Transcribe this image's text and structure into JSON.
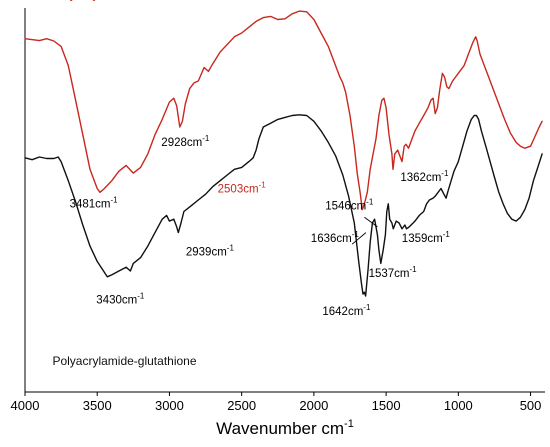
{
  "chart_data": {
    "type": "line",
    "title": "",
    "xlabel": "Wavenumber cm",
    "xlabel_sup": "-1",
    "ylabel": "",
    "xlim": [
      4000,
      400
    ],
    "x_reversed": true,
    "ylim": [
      0,
      100
    ],
    "grid": false,
    "x_ticks": [
      4000,
      3500,
      3000,
      2500,
      2000,
      1500,
      1000,
      500
    ],
    "series": [
      {
        "name": "Polyacrylamide",
        "color": "#c8281e",
        "points": [
          [
            4000,
            92.0
          ],
          [
            3900,
            91.5
          ],
          [
            3850,
            92.0
          ],
          [
            3800,
            91.4
          ],
          [
            3750,
            90.0
          ],
          [
            3700,
            85.0
          ],
          [
            3650,
            76.0
          ],
          [
            3600,
            67.0
          ],
          [
            3550,
            58.0
          ],
          [
            3500,
            53.0
          ],
          [
            3481,
            52.0
          ],
          [
            3450,
            53.0
          ],
          [
            3400,
            55.0
          ],
          [
            3350,
            57.5
          ],
          [
            3300,
            59.0
          ],
          [
            3250,
            57.0
          ],
          [
            3200,
            58.5
          ],
          [
            3150,
            62.0
          ],
          [
            3100,
            67.0
          ],
          [
            3050,
            71.0
          ],
          [
            3000,
            75.5
          ],
          [
            2970,
            76.5
          ],
          [
            2950,
            74.5
          ],
          [
            2928,
            69.0
          ],
          [
            2910,
            70.5
          ],
          [
            2890,
            75.0
          ],
          [
            2860,
            79.0
          ],
          [
            2830,
            80.5
          ],
          [
            2800,
            81.0
          ],
          [
            2760,
            84.5
          ],
          [
            2730,
            83.5
          ],
          [
            2700,
            85.5
          ],
          [
            2650,
            88.5
          ],
          [
            2600,
            90.5
          ],
          [
            2550,
            92.5
          ],
          [
            2500,
            93.5
          ],
          [
            2450,
            95.0
          ],
          [
            2400,
            96.5
          ],
          [
            2350,
            97.5
          ],
          [
            2300,
            97.8
          ],
          [
            2250,
            97.0
          ],
          [
            2200,
            97.2
          ],
          [
            2150,
            98.5
          ],
          [
            2100,
            99.2
          ],
          [
            2050,
            99.0
          ],
          [
            2000,
            97.0
          ],
          [
            1950,
            93.5
          ],
          [
            1900,
            90.0
          ],
          [
            1860,
            86.0
          ],
          [
            1820,
            82.0
          ],
          [
            1800,
            80.5
          ],
          [
            1780,
            78.0
          ],
          [
            1750,
            72.0
          ],
          [
            1720,
            64.0
          ],
          [
            1700,
            57.0
          ],
          [
            1680,
            52.0
          ],
          [
            1665,
            47.5
          ],
          [
            1650,
            49.0
          ],
          [
            1630,
            52.0
          ],
          [
            1610,
            58.0
          ],
          [
            1590,
            62.0
          ],
          [
            1570,
            66.0
          ],
          [
            1550,
            72.0
          ],
          [
            1530,
            76.0
          ],
          [
            1515,
            76.5
          ],
          [
            1500,
            74.0
          ],
          [
            1480,
            67.0
          ],
          [
            1460,
            62.0
          ],
          [
            1452,
            58.0
          ],
          [
            1440,
            62.0
          ],
          [
            1420,
            63.0
          ],
          [
            1405,
            61.5
          ],
          [
            1390,
            60.0
          ],
          [
            1375,
            64.0
          ],
          [
            1362,
            64.5
          ],
          [
            1345,
            63.5
          ],
          [
            1320,
            66.0
          ],
          [
            1300,
            68.0
          ],
          [
            1270,
            70.0
          ],
          [
            1240,
            72.0
          ],
          [
            1210,
            74.0
          ],
          [
            1190,
            76.0
          ],
          [
            1175,
            76.5
          ],
          [
            1160,
            72.5
          ],
          [
            1145,
            74.0
          ],
          [
            1130,
            78.5
          ],
          [
            1110,
            83.0
          ],
          [
            1095,
            82.0
          ],
          [
            1080,
            79.5
          ],
          [
            1065,
            79.0
          ],
          [
            1040,
            81.0
          ],
          [
            1000,
            83.0
          ],
          [
            960,
            85.0
          ],
          [
            930,
            88.0
          ],
          [
            900,
            91.0
          ],
          [
            880,
            92.5
          ],
          [
            870,
            91.5
          ],
          [
            850,
            88.0
          ],
          [
            820,
            85.0
          ],
          [
            790,
            82.0
          ],
          [
            760,
            79.0
          ],
          [
            720,
            75.0
          ],
          [
            680,
            71.0
          ],
          [
            640,
            67.5
          ],
          [
            600,
            65.0
          ],
          [
            570,
            64.0
          ],
          [
            540,
            63.5
          ],
          [
            500,
            64.0
          ],
          [
            470,
            66.5
          ],
          [
            440,
            69.0
          ],
          [
            420,
            70.5
          ]
        ]
      },
      {
        "name": "Polyacrylamide-glutathione",
        "color": "#111111",
        "points": [
          [
            4000,
            61.0
          ],
          [
            3950,
            60.5
          ],
          [
            3900,
            61.2
          ],
          [
            3850,
            60.8
          ],
          [
            3800,
            60.8
          ],
          [
            3770,
            61.2
          ],
          [
            3750,
            60.0
          ],
          [
            3700,
            55.0
          ],
          [
            3650,
            49.5
          ],
          [
            3600,
            43.5
          ],
          [
            3550,
            38.0
          ],
          [
            3500,
            34.0
          ],
          [
            3430,
            30.0
          ],
          [
            3400,
            30.5
          ],
          [
            3350,
            31.5
          ],
          [
            3300,
            32.5
          ],
          [
            3270,
            31.5
          ],
          [
            3250,
            33.5
          ],
          [
            3200,
            35.0
          ],
          [
            3150,
            38.0
          ],
          [
            3100,
            41.5
          ],
          [
            3050,
            45.0
          ],
          [
            3020,
            46.0
          ],
          [
            3000,
            44.5
          ],
          [
            2970,
            45.0
          ],
          [
            2950,
            43.0
          ],
          [
            2939,
            41.5
          ],
          [
            2920,
            44.0
          ],
          [
            2900,
            47.0
          ],
          [
            2850,
            48.5
          ],
          [
            2800,
            50.0
          ],
          [
            2750,
            51.5
          ],
          [
            2700,
            53.5
          ],
          [
            2650,
            55.0
          ],
          [
            2600,
            56.5
          ],
          [
            2550,
            58.0
          ],
          [
            2500,
            58.5
          ],
          [
            2450,
            60.0
          ],
          [
            2420,
            61.0
          ],
          [
            2400,
            63.0
          ],
          [
            2380,
            66.0
          ],
          [
            2350,
            69.0
          ],
          [
            2300,
            70.0
          ],
          [
            2250,
            71.0
          ],
          [
            2200,
            71.5
          ],
          [
            2150,
            72.0
          ],
          [
            2100,
            72.2
          ],
          [
            2050,
            72.0
          ],
          [
            2000,
            70.5
          ],
          [
            1950,
            68.0
          ],
          [
            1900,
            65.0
          ],
          [
            1850,
            61.5
          ],
          [
            1800,
            56.5
          ],
          [
            1760,
            51.0
          ],
          [
            1720,
            44.0
          ],
          [
            1690,
            34.0
          ],
          [
            1670,
            28.0
          ],
          [
            1660,
            25.5
          ],
          [
            1650,
            26.0
          ],
          [
            1642,
            25.0
          ],
          [
            1625,
            32.0
          ],
          [
            1610,
            39.0
          ],
          [
            1595,
            44.0
          ],
          [
            1580,
            45.0
          ],
          [
            1560,
            41.0
          ],
          [
            1550,
            37.0
          ],
          [
            1537,
            33.5
          ],
          [
            1520,
            37.0
          ],
          [
            1505,
            41.0
          ],
          [
            1495,
            47.0
          ],
          [
            1485,
            49.0
          ],
          [
            1475,
            45.0
          ],
          [
            1460,
            44.0
          ],
          [
            1450,
            42.5
          ],
          [
            1430,
            44.5
          ],
          [
            1410,
            44.0
          ],
          [
            1390,
            42.5
          ],
          [
            1370,
            43.5
          ],
          [
            1359,
            42.5
          ],
          [
            1340,
            43.0
          ],
          [
            1300,
            44.5
          ],
          [
            1270,
            46.0
          ],
          [
            1240,
            47.0
          ],
          [
            1220,
            49.0
          ],
          [
            1200,
            50.0
          ],
          [
            1175,
            50.5
          ],
          [
            1160,
            51.0
          ],
          [
            1140,
            52.0
          ],
          [
            1120,
            53.0
          ],
          [
            1100,
            51.5
          ],
          [
            1085,
            50.5
          ],
          [
            1070,
            52.5
          ],
          [
            1050,
            55.0
          ],
          [
            1030,
            57.5
          ],
          [
            1000,
            60.0
          ],
          [
            970,
            64.0
          ],
          [
            940,
            68.0
          ],
          [
            910,
            71.0
          ],
          [
            890,
            72.0
          ],
          [
            875,
            72.0
          ],
          [
            860,
            71.0
          ],
          [
            840,
            68.0
          ],
          [
            810,
            64.0
          ],
          [
            780,
            60.0
          ],
          [
            750,
            56.0
          ],
          [
            720,
            52.0
          ],
          [
            690,
            49.0
          ],
          [
            660,
            46.5
          ],
          [
            630,
            45.0
          ],
          [
            600,
            44.5
          ],
          [
            570,
            45.5
          ],
          [
            540,
            47.5
          ],
          [
            510,
            50.5
          ],
          [
            480,
            55.0
          ],
          [
            450,
            58.5
          ],
          [
            420,
            62.0
          ]
        ]
      }
    ],
    "series_labels": [
      {
        "text": "Polyacrylamide",
        "series": 0,
        "x": 3810,
        "y": 102.5,
        "anchor": "start"
      },
      {
        "text": "Polyacrylamide-glutathione",
        "series": 1,
        "x": 3810,
        "y": 7.0,
        "anchor": "start"
      }
    ],
    "annotations": [
      {
        "value": "3481",
        "unit": "cm",
        "sup": "-1",
        "x": 3525,
        "y": 48.0,
        "anchor": "middle",
        "color": "#000000"
      },
      {
        "value": "2928",
        "unit": "cm",
        "sup": "-1",
        "x": 2890,
        "y": 64.0,
        "anchor": "middle",
        "color": "#000000"
      },
      {
        "value": "2503",
        "unit": "cm",
        "sup": "-1",
        "x": 2500,
        "y": 52.0,
        "anchor": "middle",
        "color": "#c8281e"
      },
      {
        "value": "1546",
        "unit": "cm",
        "sup": "-1",
        "x": 1755,
        "y": 47.5,
        "anchor": "middle",
        "color": "#000000"
      },
      {
        "value": "1362",
        "unit": "cm",
        "sup": "-1",
        "x": 1235,
        "y": 55.0,
        "anchor": "middle",
        "color": "#000000"
      },
      {
        "value": "3430",
        "unit": "cm",
        "sup": "-1",
        "x": 3340,
        "y": 23.0,
        "anchor": "middle",
        "color": "#000000"
      },
      {
        "value": "2939",
        "unit": "cm",
        "sup": "-1",
        "x": 2720,
        "y": 35.5,
        "anchor": "middle",
        "color": "#000000"
      },
      {
        "value": "1636",
        "unit": "cm",
        "sup": "-1",
        "x": 1855,
        "y": 39.0,
        "anchor": "middle",
        "color": "#000000"
      },
      {
        "value": "1359",
        "unit": "cm",
        "sup": "-1",
        "x": 1225,
        "y": 39.0,
        "anchor": "middle",
        "color": "#000000"
      },
      {
        "value": "1537",
        "unit": "cm",
        "sup": "-1",
        "x": 1455,
        "y": 30.0,
        "anchor": "middle",
        "color": "#000000"
      },
      {
        "value": "1642",
        "unit": "cm",
        "sup": "-1",
        "x": 1775,
        "y": 20.0,
        "anchor": "middle",
        "color": "#000000"
      }
    ],
    "leader_lines": [
      {
        "from": [
          1650,
          45.5
        ],
        "to": [
          1560,
          43.0
        ]
      },
      {
        "from": [
          1735,
          38.5
        ],
        "to": [
          1640,
          41.5
        ]
      }
    ]
  }
}
